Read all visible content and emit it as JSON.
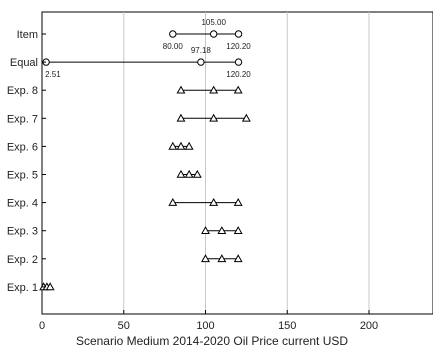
{
  "chart_data": {
    "type": "scatter",
    "xlabel": "Scenario Medium 2014-2020 Oil Price current USD",
    "ylabel": "",
    "xlim": [
      0,
      240
    ],
    "xticks": [
      0,
      50,
      100,
      150,
      200
    ],
    "grid": "vertical",
    "categories": [
      "Item",
      "Equal",
      "Exp. 8",
      "Exp. 7",
      "Exp. 6",
      "Exp. 5",
      "Exp. 4",
      "Exp. 3",
      "Exp. 2",
      "Exp. 1"
    ],
    "rows": [
      {
        "label": "Item",
        "marker": "circle",
        "values": [
          80.0,
          105.0,
          120.2
        ],
        "data_labels": [
          {
            "value": 80.0,
            "text": "80.00",
            "pos": "below"
          },
          {
            "value": 105.0,
            "text": "105.00",
            "pos": "above"
          },
          {
            "value": 120.2,
            "text": "120.20",
            "pos": "below"
          }
        ]
      },
      {
        "label": "Equal",
        "marker": "circle",
        "values": [
          2.51,
          97.18,
          120.2
        ],
        "data_labels": [
          {
            "value": 2.51,
            "text": "2.51",
            "pos": "below"
          },
          {
            "value": 97.18,
            "text": "97.18",
            "pos": "above"
          },
          {
            "value": 120.2,
            "text": "120.20",
            "pos": "below"
          }
        ]
      },
      {
        "label": "Exp. 8",
        "marker": "triangle",
        "values": [
          85,
          105,
          120
        ]
      },
      {
        "label": "Exp. 7",
        "marker": "triangle",
        "values": [
          85,
          105,
          125
        ]
      },
      {
        "label": "Exp. 6",
        "marker": "triangle",
        "values": [
          80,
          85,
          90
        ]
      },
      {
        "label": "Exp. 5",
        "marker": "triangle",
        "values": [
          85,
          90,
          95
        ]
      },
      {
        "label": "Exp. 4",
        "marker": "triangle",
        "values": [
          80,
          105,
          120
        ]
      },
      {
        "label": "Exp. 3",
        "marker": "triangle",
        "values": [
          100,
          110,
          120
        ]
      },
      {
        "label": "Exp. 2",
        "marker": "triangle",
        "values": [
          100,
          110,
          120
        ]
      },
      {
        "label": "Exp. 1",
        "marker": "triangle",
        "values": [
          1,
          3,
          5
        ]
      }
    ]
  },
  "colors": {
    "line": "#000000",
    "grid": "#c8c8c8",
    "frame": "#000000"
  }
}
